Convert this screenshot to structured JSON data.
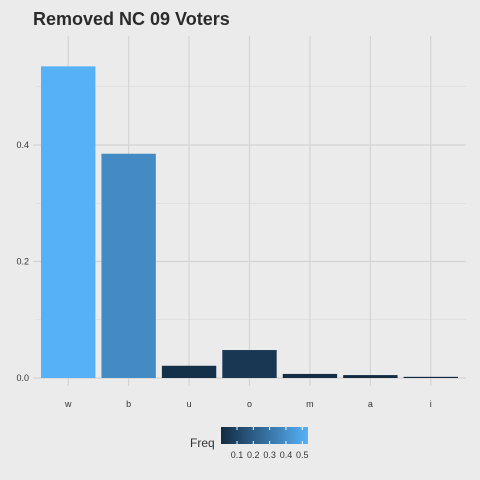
{
  "chart_data": {
    "type": "bar",
    "title": "Removed NC 09 Voters",
    "xlabel": "",
    "ylabel": "",
    "categories": [
      "w",
      "b",
      "u",
      "o",
      "m",
      "a",
      "i"
    ],
    "values": [
      0.535,
      0.385,
      0.021,
      0.048,
      0.007,
      0.005,
      0.002
    ],
    "ylim": [
      0,
      0.56
    ],
    "yticks": [
      0.0,
      0.2,
      0.4
    ],
    "ytick_labels": [
      "0.0",
      "0.2",
      "0.4"
    ],
    "grid": true,
    "legend": {
      "title": "Freq",
      "position": "bottom",
      "type": "colorbar",
      "ticks": [
        0.1,
        0.2,
        0.3,
        0.4,
        0.5
      ],
      "tick_labels": [
        "0.1",
        "0.2",
        "0.3",
        "0.4",
        "0.5"
      ],
      "range": [
        0.002,
        0.535
      ]
    },
    "colors": {
      "low": "#132B43",
      "high": "#56B1F7",
      "background": "#ebebeb",
      "grid": "#d0d0d0"
    }
  }
}
